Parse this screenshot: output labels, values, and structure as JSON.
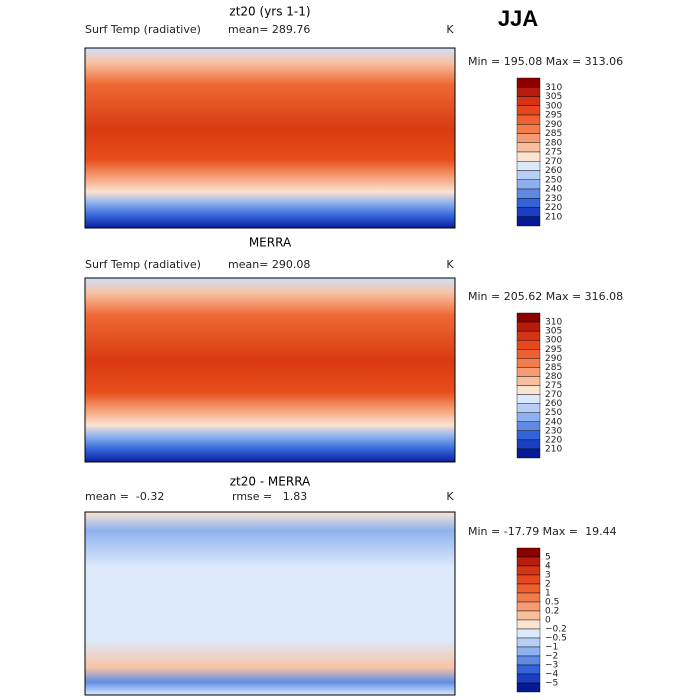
{
  "season": "JJA",
  "panels": [
    {
      "title": "zt20 (yrs 1-1)",
      "left_label": "Surf Temp (radiative)",
      "center_label": "mean= 289.76",
      "unit": "K",
      "range_label": "Min = 195.08 Max = 313.06",
      "colorbar": {
        "labels": [
          "310",
          "305",
          "300",
          "295",
          "290",
          "285",
          "280",
          "275",
          "270",
          "260",
          "250",
          "240",
          "230",
          "220",
          "210"
        ],
        "colors": [
          "#8c0000",
          "#b81a0c",
          "#d63214",
          "#e6481c",
          "#ee6030",
          "#f27c4c",
          "#f59a72",
          "#f8bf9e",
          "#fbe4d0",
          "#dce8fb",
          "#b7cff6",
          "#8db1ef",
          "#5e8ae4",
          "#3363d8",
          "#1a3fc4",
          "#071a96"
        ]
      }
    },
    {
      "title": "MERRA",
      "left_label": "Surf Temp (radiative)",
      "center_label": "mean= 290.08",
      "unit": "K",
      "range_label": "Min = 205.62 Max = 316.08",
      "colorbar": {
        "labels": [
          "310",
          "305",
          "300",
          "295",
          "290",
          "285",
          "280",
          "275",
          "270",
          "260",
          "250",
          "240",
          "230",
          "220",
          "210"
        ],
        "colors": [
          "#8c0000",
          "#b81a0c",
          "#d63214",
          "#e6481c",
          "#ee6030",
          "#f27c4c",
          "#f59a72",
          "#f8bf9e",
          "#fbe4d0",
          "#dce8fb",
          "#b7cff6",
          "#8db1ef",
          "#5e8ae4",
          "#3363d8",
          "#1a3fc4",
          "#071a96"
        ]
      }
    },
    {
      "title": "zt20 - MERRA",
      "left_label": "mean =  -0.32",
      "center_label": "rmse =   1.83",
      "unit": "K",
      "range_label": "Min = -17.79 Max =  19.44",
      "colorbar": {
        "labels": [
          "5",
          "4",
          "3",
          "2",
          "1",
          "0.5",
          "0.2",
          "0",
          "−0.2",
          "−0.5",
          "−1",
          "−2",
          "−3",
          "−4",
          "−5"
        ],
        "colors": [
          "#8c0000",
          "#b81a0c",
          "#d63214",
          "#e6481c",
          "#ee6030",
          "#f27c4c",
          "#f59a72",
          "#f8bf9e",
          "#fbe4d0",
          "#dce8fb",
          "#b7cff6",
          "#8db1ef",
          "#5e8ae4",
          "#3363d8",
          "#1a3fc4",
          "#071a96"
        ]
      }
    }
  ]
}
